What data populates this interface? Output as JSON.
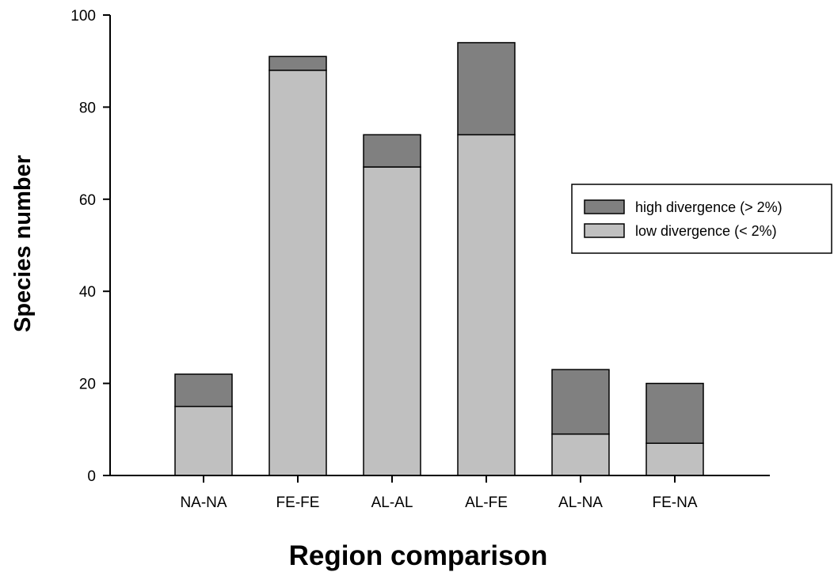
{
  "chart_data": {
    "type": "bar",
    "stacked": true,
    "title": "",
    "xlabel": "Region comparison",
    "ylabel": "Species number",
    "ylim": [
      0,
      100
    ],
    "yticks": [
      0,
      20,
      40,
      60,
      80,
      100
    ],
    "grid": false,
    "legend_position": "right",
    "categories": [
      "NA-NA",
      "FE-FE",
      "AL-AL",
      "AL-FE",
      "AL-NA",
      "FE-NA"
    ],
    "series": [
      {
        "name": "low divergence (< 2%)",
        "values": [
          15,
          88,
          67,
          74,
          9,
          7
        ],
        "color": "#c0c0c0"
      },
      {
        "name": "high divergence (> 2%)",
        "values": [
          7,
          3,
          7,
          20,
          14,
          13
        ],
        "color": "#808080"
      }
    ]
  }
}
